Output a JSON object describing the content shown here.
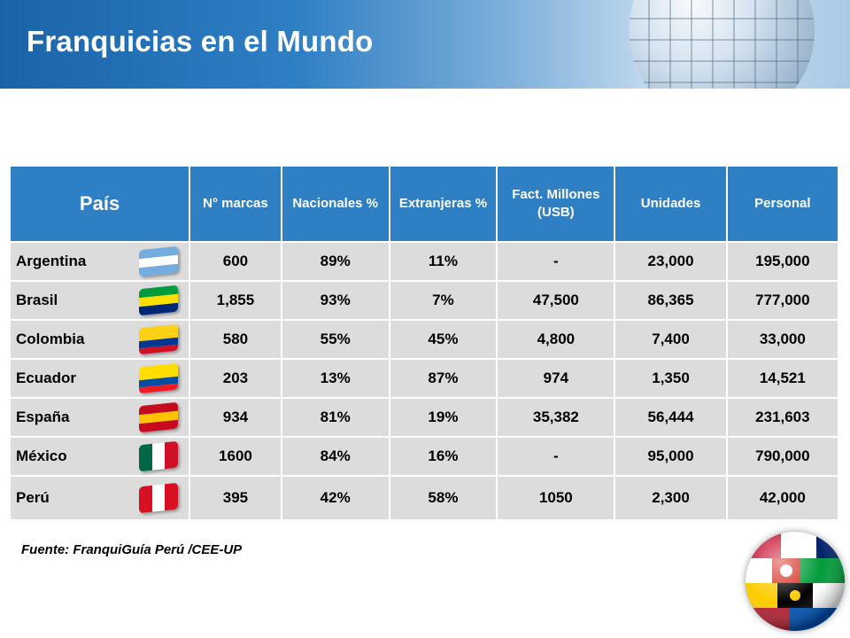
{
  "slide": {
    "title": "Franquicias en el Mundo",
    "source": "Fuente: FranquiGuía Perú /CEE-UP"
  },
  "table": {
    "headers": {
      "country": "País",
      "brands": "N° marcas",
      "national": "Nacionales %",
      "foreign": "Extranjeras %",
      "revenue": "Fact. Millones (USB)",
      "units": "Unidades",
      "staff": "Personal"
    },
    "rows": [
      {
        "country": "Argentina",
        "brands": "600",
        "national": "89%",
        "foreign": "11%",
        "revenue": "-",
        "units": "23,000",
        "staff": "195,000",
        "flag_colors": [
          "#74acdf",
          "#ffffff",
          "#74acdf"
        ]
      },
      {
        "country": "Brasil",
        "brands": "1,855",
        "national": "93%",
        "foreign": "7%",
        "revenue": "47,500",
        "units": "86,365",
        "staff": "777,000",
        "flag_colors": [
          "#009c3b",
          "#ffdf00",
          "#002776"
        ]
      },
      {
        "country": "Colombia",
        "brands": "580",
        "national": "55%",
        "foreign": "45%",
        "revenue": "4,800",
        "units": "7,400",
        "staff": "33,000",
        "flag_colors": [
          "#fcd116",
          "#003893",
          "#ce1126"
        ]
      },
      {
        "country": "Ecuador",
        "brands": "203",
        "national": "13%",
        "foreign": "87%",
        "revenue": "974",
        "units": "1,350",
        "staff": "14,521",
        "flag_colors": [
          "#ffdd00",
          "#034ea2",
          "#ed1c24"
        ]
      },
      {
        "country": "España",
        "brands": "934",
        "national": "81%",
        "foreign": "19%",
        "revenue": "35,382",
        "units": "56,444",
        "staff": "231,603",
        "flag_colors": [
          "#c60b1e",
          "#ffc400",
          "#c60b1e"
        ]
      },
      {
        "country": "México",
        "brands": "1600",
        "national": "84%",
        "foreign": "16%",
        "revenue": "-",
        "units": "95,000",
        "staff": "790,000",
        "flag_colors": [
          "#006847",
          "#ffffff",
          "#ce1126"
        ]
      },
      {
        "country": "Perú",
        "brands": "395",
        "national": "42%",
        "foreign": "58%",
        "revenue": "1050",
        "units": "2,300",
        "staff": "42,000",
        "flag_colors": [
          "#d91023",
          "#ffffff",
          "#d91023"
        ]
      }
    ]
  },
  "colors": {
    "header": "#2f7fc4",
    "cell": "#dcdcdc",
    "banner": "#1a63a8"
  }
}
